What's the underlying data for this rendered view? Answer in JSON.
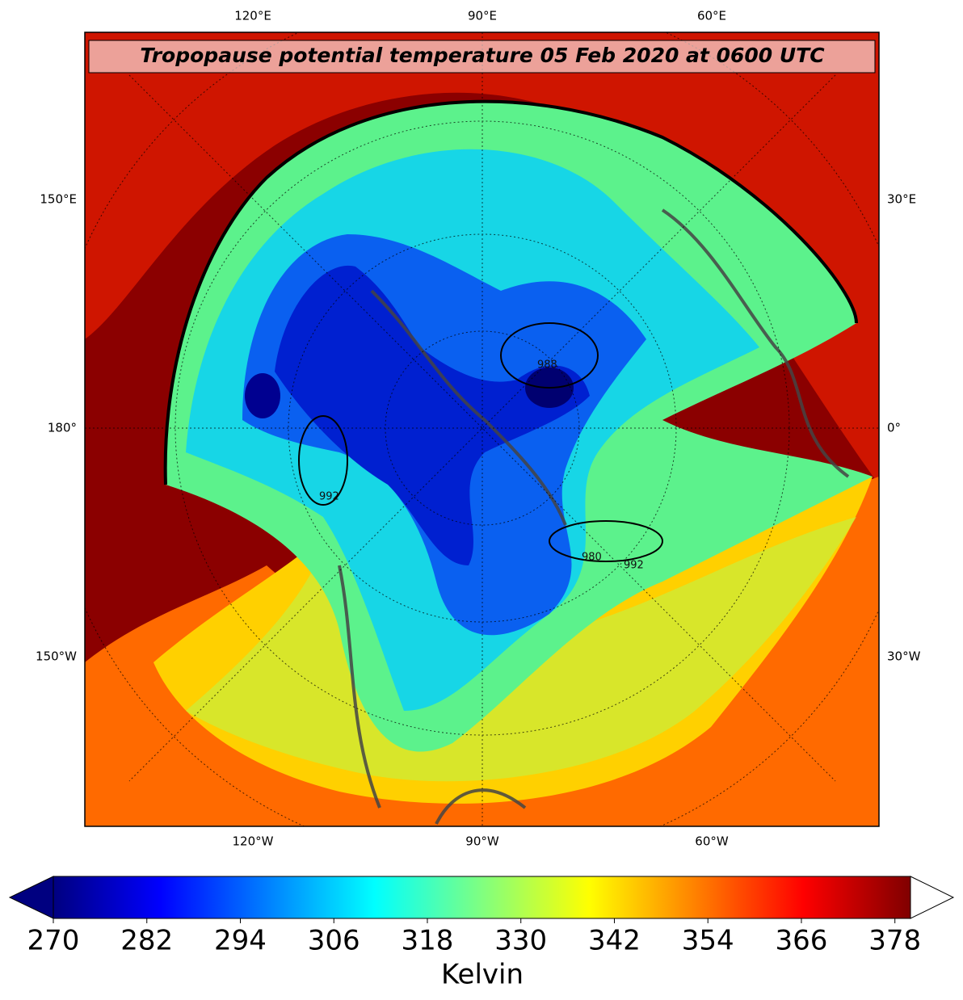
{
  "map": {
    "title": "Tropopause potential temperature 05 Feb 2020 at 0600 UTC",
    "top_labels": [
      "120°E",
      "90°E",
      "60°E"
    ],
    "bottom_labels": [
      "120°W",
      "90°W",
      "60°W"
    ],
    "left_labels": [
      "150°E",
      "180°",
      "150°W"
    ],
    "right_labels": [
      "30°E",
      "0°",
      "30°W"
    ],
    "contour_labels": [
      "992",
      "988",
      "980",
      "992"
    ]
  },
  "colorbar": {
    "colormap": "jet",
    "range": [
      270,
      380
    ],
    "ticks": [
      270,
      282,
      294,
      306,
      318,
      330,
      342,
      354,
      366,
      378
    ],
    "label": "Kelvin"
  }
}
